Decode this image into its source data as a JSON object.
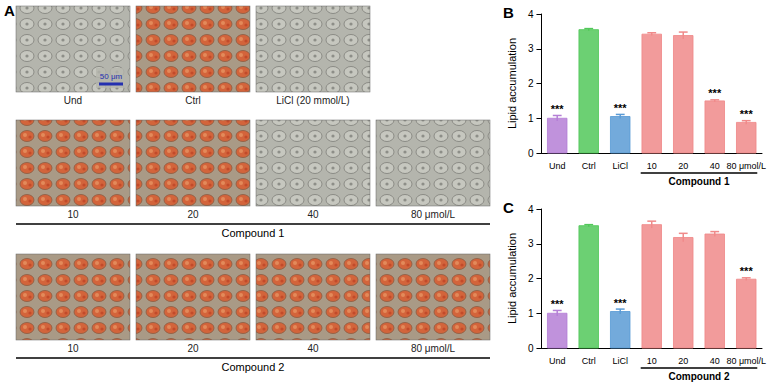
{
  "image_panel": {
    "label": "A",
    "scale_bar": "50 μm",
    "rows": [
      {
        "images": [
          {
            "label": "Und",
            "stained": false
          },
          {
            "label": "Ctrl",
            "stained": true
          },
          {
            "label": "LiCl (20 mmol/L)",
            "stained": false
          }
        ]
      },
      {
        "images": [
          {
            "label": "10",
            "stained": true
          },
          {
            "label": "20",
            "stained": true
          },
          {
            "label": "40",
            "stained": false
          },
          {
            "label": "80 μmol/L",
            "stained": false
          }
        ],
        "group": "Compound 1"
      },
      {
        "images": [
          {
            "label": "10",
            "stained": true
          },
          {
            "label": "20",
            "stained": true
          },
          {
            "label": "40",
            "stained": true
          },
          {
            "label": "80 μmol/L",
            "stained": true
          }
        ],
        "group": "Compound 2"
      }
    ]
  },
  "chart_data": [
    {
      "type": "bar",
      "title": "B",
      "y_label": "Lipid accumulation",
      "categories": [
        "Und",
        "Ctrl",
        "LiCl",
        "10",
        "20",
        "40",
        "80 μmol/L"
      ],
      "values": [
        1.0,
        3.55,
        1.05,
        3.42,
        3.38,
        1.5,
        0.88
      ],
      "errors": [
        0.08,
        0.03,
        0.06,
        0.04,
        0.1,
        0.03,
        0.05
      ],
      "significance": [
        "***",
        null,
        "***",
        null,
        null,
        "***",
        "***"
      ],
      "colors": [
        "#b57fd6",
        "#52c85a",
        "#5b9bd5",
        "#f08a8a",
        "#f08a8a",
        "#f08a8a",
        "#f08a8a"
      ],
      "group": {
        "label": "Compound 1",
        "categories": [
          "10",
          "20",
          "40",
          "80 μmol/L"
        ]
      },
      "ylim": [
        0,
        4
      ],
      "yticks": [
        0,
        1,
        2,
        3,
        4
      ],
      "grid": false
    },
    {
      "type": "bar",
      "title": "C",
      "y_label": "Lipid accumulation",
      "categories": [
        "Und",
        "Ctrl",
        "LiCl",
        "10",
        "20",
        "40",
        "80 μmol/L"
      ],
      "values": [
        1.0,
        3.52,
        1.05,
        3.55,
        3.18,
        3.28,
        1.98
      ],
      "errors": [
        0.08,
        0.03,
        0.07,
        0.1,
        0.12,
        0.07,
        0.04
      ],
      "significance": [
        "***",
        null,
        "***",
        null,
        null,
        null,
        "***"
      ],
      "colors": [
        "#b57fd6",
        "#52c85a",
        "#5b9bd5",
        "#f08a8a",
        "#f08a8a",
        "#f08a8a",
        "#f08a8a"
      ],
      "group": {
        "label": "Compound 2",
        "categories": [
          "10",
          "20",
          "40",
          "80 μmol/L"
        ]
      },
      "ylim": [
        0,
        4
      ],
      "yticks": [
        0,
        1,
        2,
        3,
        4
      ],
      "grid": false
    }
  ]
}
